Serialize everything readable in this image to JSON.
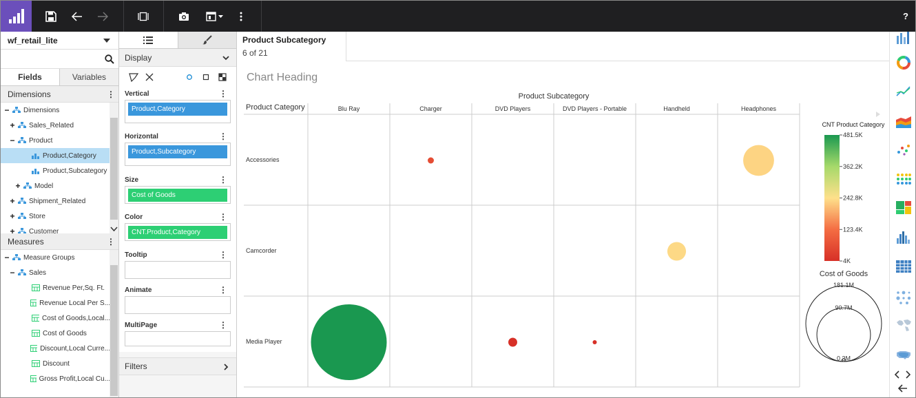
{
  "toolbar": {
    "help_label": "?"
  },
  "datasource": {
    "name": "wf_retail_lite"
  },
  "left_tabs": {
    "fields": "Fields",
    "variables": "Variables"
  },
  "dimensions": {
    "header": "Dimensions",
    "items": [
      {
        "label": "Dimensions",
        "pm": "−"
      },
      {
        "label": "Sales_Related",
        "pm": "+"
      },
      {
        "label": "Product",
        "pm": "−"
      },
      {
        "label": "Product,Category",
        "pm": ""
      },
      {
        "label": "Product,Subcategory",
        "pm": ""
      },
      {
        "label": "Model",
        "pm": "+"
      },
      {
        "label": "Shipment_Related",
        "pm": "+"
      },
      {
        "label": "Store",
        "pm": "+"
      },
      {
        "label": "Customer",
        "pm": "+"
      }
    ]
  },
  "measures": {
    "header": "Measures",
    "items": [
      {
        "label": "Measure Groups",
        "pm": "−"
      },
      {
        "label": "Sales",
        "pm": "−"
      },
      {
        "label": "Revenue Per,Sq. Ft.",
        "pm": ""
      },
      {
        "label": "Revenue Local Per S...",
        "pm": ""
      },
      {
        "label": "Cost of Goods,Local...",
        "pm": ""
      },
      {
        "label": "Cost of Goods",
        "pm": ""
      },
      {
        "label": "Discount,Local Curre...",
        "pm": ""
      },
      {
        "label": "Discount",
        "pm": ""
      },
      {
        "label": "Gross Profit,Local Cu...",
        "pm": ""
      }
    ]
  },
  "query_panel": {
    "display_label": "Display",
    "vertical_label": "Vertical",
    "vertical_pill": "Product,Category",
    "horizontal_label": "Horizontal",
    "horizontal_pill": "Product,Subcategory",
    "size_label": "Size",
    "size_pill": "Cost of Goods",
    "color_label": "Color",
    "color_pill": "CNT.Product,Category",
    "tooltip_label": "Tooltip",
    "animate_label": "Animate",
    "multipage_label": "MultiPage",
    "filters_label": "Filters"
  },
  "page_info": {
    "title": "Product Subcategory",
    "count": "6 of 21"
  },
  "colors": {
    "toolbar_bg": "#1f1f21",
    "logo_bg": "#6b4fbb",
    "selected_row": "#b9def5",
    "pill_blue": "#3a97dc",
    "pill_green": "#2dcf74"
  },
  "palette_icons": [
    "bar-chart-icon",
    "ring-chart-icon",
    "line-chart-icon",
    "area-chart-icon",
    "scatter-chart-icon",
    "matrix-chart-icon",
    "treemap-icon",
    "histogram-icon",
    "table-icon",
    "bubble-grid-icon",
    "world-map-icon",
    "us-map-icon"
  ],
  "chart_data": {
    "type": "scatter",
    "title": "Chart Heading",
    "column_header": "Product Subcategory",
    "row_header": "Product Category",
    "columns": [
      "Blu Ray",
      "Charger",
      "DVD Players",
      "DVD Players - Portable",
      "Handheld",
      "Headphones"
    ],
    "rows": [
      "Accessories",
      "Camcorder",
      "Media Player"
    ],
    "bubbles": [
      {
        "row": "Accessories",
        "column": "Charger",
        "size": 1.2,
        "color_value": 60
      },
      {
        "row": "Accessories",
        "column": "Headphones",
        "size": 30,
        "color_value": 230
      },
      {
        "row": "Camcorder",
        "column": "Handheld",
        "size": 11,
        "color_value": 235
      },
      {
        "row": "Media Player",
        "column": "Blu Ray",
        "size": 181.1,
        "color_value": 481.5
      },
      {
        "row": "Media Player",
        "column": "DVD Players",
        "size": 2.5,
        "color_value": 4
      },
      {
        "row": "Media Player",
        "column": "DVD Players - Portable",
        "size": 0.3,
        "color_value": 4
      }
    ],
    "color_legend": {
      "title": "CNT Product Category",
      "ticks": [
        "481.5K",
        "362.2K",
        "242.8K",
        "123.4K",
        "4K"
      ],
      "range": [
        4,
        481.5
      ]
    },
    "size_legend": {
      "title": "Cost of Goods",
      "labels": [
        "181.1M",
        "90.7M",
        "0.3M"
      ],
      "range": [
        0.3,
        181.1
      ]
    }
  }
}
